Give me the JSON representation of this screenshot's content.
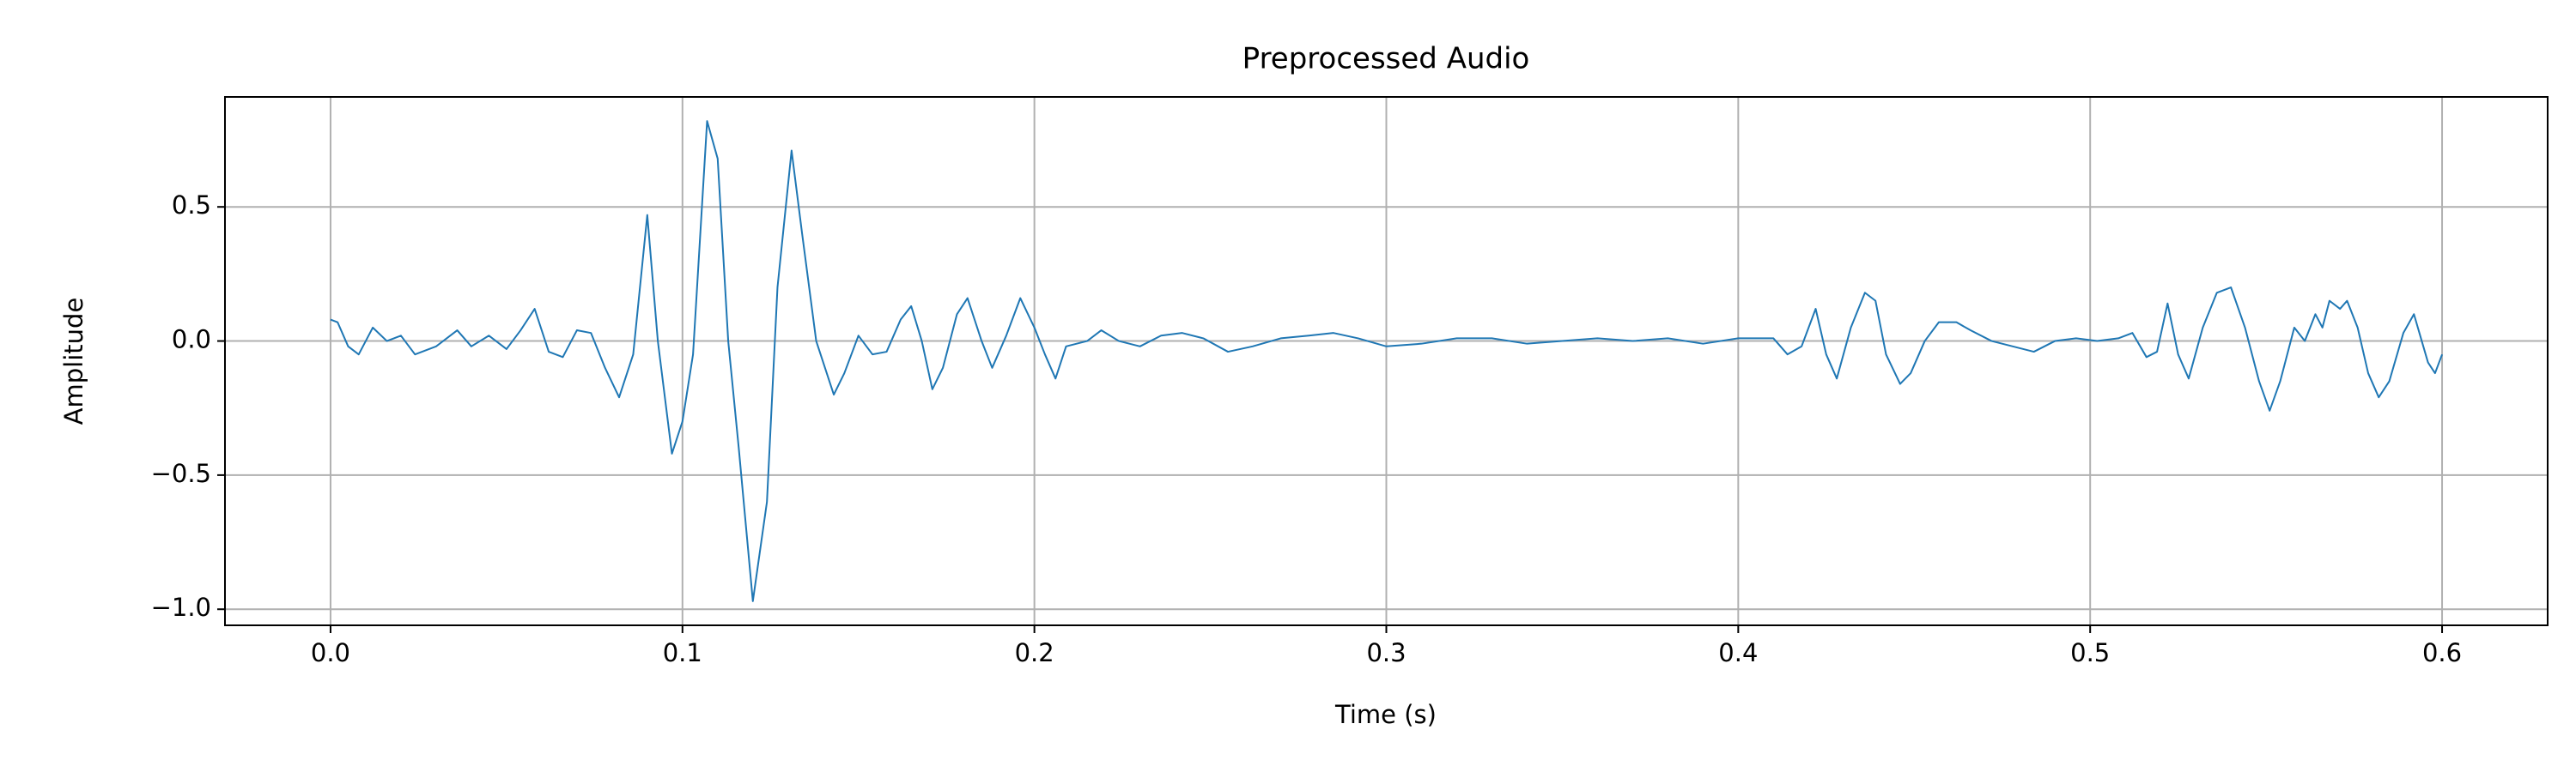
{
  "chart_data": {
    "type": "line",
    "title": "Preprocessed Audio",
    "xlabel": "Time (s)",
    "ylabel": "Amplitude",
    "x": [
      0.0,
      0.002,
      0.005,
      0.008,
      0.012,
      0.016,
      0.02,
      0.024,
      0.03,
      0.036,
      0.04,
      0.045,
      0.05,
      0.054,
      0.058,
      0.062,
      0.066,
      0.07,
      0.074,
      0.078,
      0.082,
      0.086,
      0.09,
      0.093,
      0.097,
      0.1,
      0.103,
      0.107,
      0.11,
      0.113,
      0.116,
      0.12,
      0.124,
      0.127,
      0.131,
      0.134,
      0.138,
      0.143,
      0.146,
      0.15,
      0.154,
      0.158,
      0.162,
      0.165,
      0.168,
      0.171,
      0.174,
      0.178,
      0.181,
      0.185,
      0.188,
      0.192,
      0.196,
      0.2,
      0.203,
      0.206,
      0.209,
      0.215,
      0.219,
      0.224,
      0.23,
      0.236,
      0.242,
      0.248,
      0.255,
      0.262,
      0.27,
      0.278,
      0.285,
      0.292,
      0.3,
      0.31,
      0.32,
      0.33,
      0.34,
      0.35,
      0.36,
      0.37,
      0.38,
      0.39,
      0.4,
      0.41,
      0.414,
      0.418,
      0.422,
      0.425,
      0.428,
      0.432,
      0.436,
      0.439,
      0.442,
      0.446,
      0.449,
      0.453,
      0.457,
      0.462,
      0.466,
      0.472,
      0.478,
      0.484,
      0.49,
      0.496,
      0.502,
      0.508,
      0.512,
      0.516,
      0.519,
      0.522,
      0.525,
      0.528,
      0.532,
      0.536,
      0.54,
      0.544,
      0.548,
      0.551,
      0.554,
      0.558,
      0.561,
      0.564,
      0.566,
      0.568,
      0.571,
      0.573,
      0.576,
      0.579,
      0.582,
      0.585,
      0.589,
      0.592,
      0.596,
      0.598,
      0.6
    ],
    "values": [
      0.08,
      0.07,
      -0.02,
      -0.05,
      0.05,
      0.0,
      0.02,
      -0.05,
      -0.02,
      0.04,
      -0.02,
      0.02,
      -0.03,
      0.04,
      0.12,
      -0.04,
      -0.06,
      0.04,
      0.03,
      -0.1,
      -0.21,
      -0.05,
      0.47,
      0.0,
      -0.42,
      -0.3,
      -0.05,
      0.82,
      0.68,
      0.0,
      -0.4,
      -0.97,
      -0.6,
      0.2,
      0.71,
      0.4,
      0.0,
      -0.2,
      -0.12,
      0.02,
      -0.05,
      -0.04,
      0.08,
      0.13,
      0.0,
      -0.18,
      -0.1,
      0.1,
      0.16,
      0.0,
      -0.1,
      0.02,
      0.16,
      0.05,
      -0.05,
      -0.14,
      -0.02,
      0.0,
      0.04,
      0.0,
      -0.02,
      0.02,
      0.03,
      0.01,
      -0.04,
      -0.02,
      0.01,
      0.02,
      0.03,
      0.01,
      -0.02,
      -0.01,
      0.01,
      0.01,
      -0.01,
      0.0,
      0.01,
      0.0,
      0.01,
      -0.01,
      0.01,
      0.01,
      -0.05,
      -0.02,
      0.12,
      -0.05,
      -0.14,
      0.05,
      0.18,
      0.15,
      -0.05,
      -0.16,
      -0.12,
      0.0,
      0.07,
      0.07,
      0.04,
      0.0,
      -0.02,
      -0.04,
      0.0,
      0.01,
      0.0,
      0.01,
      0.03,
      -0.06,
      -0.04,
      0.14,
      -0.05,
      -0.14,
      0.05,
      0.18,
      0.2,
      0.05,
      -0.15,
      -0.26,
      -0.15,
      0.05,
      0.0,
      0.1,
      0.05,
      0.15,
      0.12,
      0.15,
      0.05,
      -0.12,
      -0.21,
      -0.15,
      0.03,
      0.1,
      -0.08,
      -0.12,
      -0.05
    ],
    "color": "#1f77b4",
    "xlim": [
      -0.03,
      0.63
    ],
    "ylim": [
      -1.06,
      0.91
    ],
    "xticks": [
      {
        "value": 0.0,
        "label": "0.0"
      },
      0.1,
      0.2,
      0.3,
      0.4,
      0.5,
      0.6
    ],
    "yticks": [
      {
        "value": -1.0,
        "label": "−1.0"
      },
      {
        "value": -0.5,
        "label": "−0.5"
      },
      {
        "value": 0.0,
        "label": "0.0"
      },
      0.5
    ],
    "grid": true
  }
}
